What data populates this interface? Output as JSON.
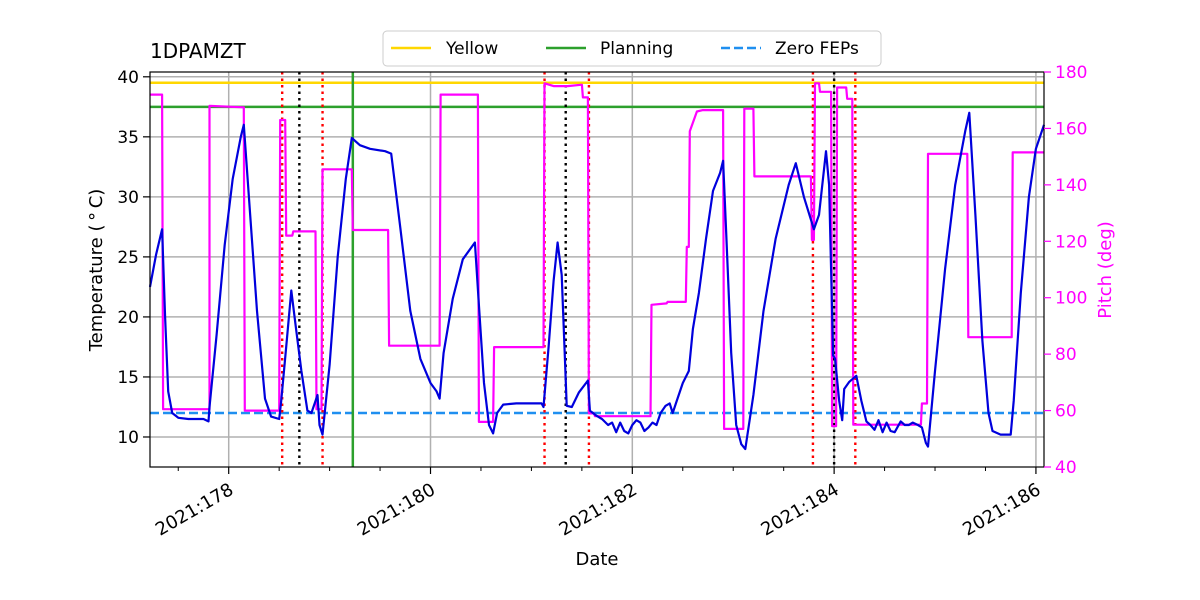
{
  "chart_data": {
    "type": "line",
    "title": "1DPAMZT",
    "xlabel": "Date",
    "ylabel_left": "Temperature ($^\\circ$C)",
    "ylabel_left_display": "Temperature ( ° C)",
    "ylabel_right": "Pitch (deg)",
    "xlim": [
      177.22,
      186.08
    ],
    "ylim_left": [
      7.5,
      40.4
    ],
    "ylim_right": [
      40,
      180
    ],
    "x_ticks": [
      178,
      180,
      182,
      184,
      186
    ],
    "x_tick_labels": [
      "2021:178",
      "2021:180",
      "2021:182",
      "2021:184",
      "2021:186"
    ],
    "x_minor_ticks": [
      177.5,
      178.5,
      179.0,
      179.5,
      180.5,
      181.0,
      181.5,
      182.5,
      183.0,
      183.5,
      184.5,
      185.0,
      185.5
    ],
    "y_left_ticks": [
      10,
      15,
      20,
      25,
      30,
      35,
      40
    ],
    "y_right_ticks": [
      40,
      60,
      80,
      100,
      120,
      140,
      160,
      180
    ],
    "grid": true,
    "legend": {
      "position": "top-center",
      "entries": [
        {
          "label": "Yellow",
          "color": "#ffd700",
          "style": "solid"
        },
        {
          "label": "Planning",
          "color": "#2ca02c",
          "style": "solid"
        },
        {
          "label": "Zero FEPs",
          "color": "#1f8ff0",
          "style": "dashed"
        }
      ]
    },
    "limits": {
      "yellow": 39.5,
      "planning": 37.5,
      "zero_feps": 12.0
    },
    "vertical_markers": {
      "planning_line": 179.23,
      "black_dotted": [
        178.7,
        181.34,
        184.0
      ],
      "red_dotted": [
        178.53,
        178.93,
        181.13,
        181.57,
        183.79,
        184.21
      ]
    },
    "colors": {
      "temperature": "#0000dd",
      "pitch": "#ff00ff",
      "yellow": "#ffd700",
      "planning": "#2ca02c",
      "zero_feps": "#1f8ff0",
      "red_marker": "#ff0000",
      "black_marker": "#000000",
      "right_axis": "#ff00ff",
      "grid": "#b0b0b0"
    },
    "series": [
      {
        "name": "1DPAMZT temperature",
        "axis": "left",
        "points": [
          [
            177.22,
            22.5
          ],
          [
            177.28,
            25.2
          ],
          [
            177.34,
            27.3
          ],
          [
            177.37,
            20.0
          ],
          [
            177.4,
            13.8
          ],
          [
            177.44,
            12.0
          ],
          [
            177.5,
            11.6
          ],
          [
            177.6,
            11.5
          ],
          [
            177.75,
            11.5
          ],
          [
            177.8,
            11.3
          ],
          [
            177.81,
            12.5
          ],
          [
            177.88,
            18.5
          ],
          [
            177.96,
            26.0
          ],
          [
            178.04,
            31.5
          ],
          [
            178.12,
            35.0
          ],
          [
            178.15,
            36.0
          ],
          [
            178.2,
            30.0
          ],
          [
            178.28,
            20.5
          ],
          [
            178.36,
            13.2
          ],
          [
            178.42,
            11.7
          ],
          [
            178.5,
            11.5
          ],
          [
            178.52,
            13.0
          ],
          [
            178.57,
            17.5
          ],
          [
            178.62,
            22.2
          ],
          [
            178.66,
            19.5
          ],
          [
            178.72,
            15.5
          ],
          [
            178.78,
            12.2
          ],
          [
            178.82,
            12.0
          ],
          [
            178.86,
            13.0
          ],
          [
            178.88,
            13.5
          ],
          [
            178.9,
            11.0
          ],
          [
            178.93,
            10.2
          ],
          [
            179.0,
            16.0
          ],
          [
            179.08,
            25.0
          ],
          [
            179.16,
            31.5
          ],
          [
            179.22,
            34.9
          ],
          [
            179.3,
            34.3
          ],
          [
            179.4,
            34.0
          ],
          [
            179.55,
            33.8
          ],
          [
            179.61,
            33.6
          ],
          [
            179.7,
            27.5
          ],
          [
            179.8,
            20.5
          ],
          [
            179.9,
            16.5
          ],
          [
            180.0,
            14.5
          ],
          [
            180.06,
            13.8
          ],
          [
            180.09,
            13.2
          ],
          [
            180.13,
            17.0
          ],
          [
            180.22,
            21.5
          ],
          [
            180.32,
            24.8
          ],
          [
            180.44,
            26.2
          ],
          [
            180.48,
            21.0
          ],
          [
            180.53,
            14.5
          ],
          [
            180.58,
            11.0
          ],
          [
            180.62,
            10.3
          ],
          [
            180.66,
            12.0
          ],
          [
            180.72,
            12.7
          ],
          [
            180.85,
            12.8
          ],
          [
            181.0,
            12.8
          ],
          [
            181.1,
            12.8
          ],
          [
            181.12,
            12.5
          ],
          [
            181.17,
            17.5
          ],
          [
            181.22,
            23.0
          ],
          [
            181.26,
            26.2
          ],
          [
            181.3,
            23.5
          ],
          [
            181.33,
            17.0
          ],
          [
            181.35,
            12.6
          ],
          [
            181.4,
            12.5
          ],
          [
            181.47,
            13.7
          ],
          [
            181.56,
            14.7
          ],
          [
            181.58,
            12.2
          ],
          [
            181.64,
            11.8
          ],
          [
            181.7,
            11.5
          ],
          [
            181.76,
            11.0
          ],
          [
            181.8,
            11.2
          ],
          [
            181.84,
            10.4
          ],
          [
            181.88,
            11.2
          ],
          [
            181.92,
            10.5
          ],
          [
            181.96,
            10.3
          ],
          [
            182.0,
            11.0
          ],
          [
            182.04,
            11.4
          ],
          [
            182.08,
            11.2
          ],
          [
            182.12,
            10.5
          ],
          [
            182.16,
            10.8
          ],
          [
            182.2,
            11.2
          ],
          [
            182.24,
            11.0
          ],
          [
            182.28,
            12.0
          ],
          [
            182.33,
            12.6
          ],
          [
            182.37,
            12.8
          ],
          [
            182.4,
            12.0
          ],
          [
            182.44,
            13.0
          ],
          [
            182.5,
            14.5
          ],
          [
            182.56,
            15.5
          ],
          [
            182.6,
            19.0
          ],
          [
            182.66,
            22.0
          ],
          [
            182.73,
            26.5
          ],
          [
            182.8,
            30.5
          ],
          [
            182.87,
            32.0
          ],
          [
            182.9,
            33.0
          ],
          [
            182.93,
            27.0
          ],
          [
            182.98,
            17.0
          ],
          [
            183.03,
            11.0
          ],
          [
            183.08,
            9.4
          ],
          [
            183.12,
            9.0
          ],
          [
            183.2,
            13.5
          ],
          [
            183.3,
            20.5
          ],
          [
            183.42,
            26.5
          ],
          [
            183.55,
            31.0
          ],
          [
            183.62,
            32.8
          ],
          [
            183.7,
            30.0
          ],
          [
            183.8,
            27.3
          ],
          [
            183.85,
            28.5
          ],
          [
            183.92,
            33.8
          ],
          [
            183.95,
            31.0
          ],
          [
            183.99,
            16.8
          ],
          [
            184.01,
            16.5
          ],
          [
            184.05,
            13.0
          ],
          [
            184.08,
            11.4
          ],
          [
            184.1,
            14.0
          ],
          [
            184.15,
            14.6
          ],
          [
            184.22,
            15.1
          ],
          [
            184.27,
            13.0
          ],
          [
            184.32,
            11.3
          ],
          [
            184.36,
            11.0
          ],
          [
            184.4,
            10.6
          ],
          [
            184.44,
            11.4
          ],
          [
            184.48,
            10.4
          ],
          [
            184.52,
            11.2
          ],
          [
            184.56,
            10.5
          ],
          [
            184.6,
            10.4
          ],
          [
            184.66,
            11.3
          ],
          [
            184.7,
            11.0
          ],
          [
            184.74,
            11.0
          ],
          [
            184.78,
            11.2
          ],
          [
            184.83,
            11.0
          ],
          [
            184.87,
            10.8
          ],
          [
            184.91,
            9.5
          ],
          [
            184.93,
            9.2
          ],
          [
            185.0,
            15.5
          ],
          [
            185.1,
            24.0
          ],
          [
            185.2,
            31.0
          ],
          [
            185.3,
            35.5
          ],
          [
            185.34,
            37.0
          ],
          [
            185.4,
            28.5
          ],
          [
            185.47,
            18.0
          ],
          [
            185.53,
            12.0
          ],
          [
            185.57,
            10.5
          ],
          [
            185.65,
            10.2
          ],
          [
            185.75,
            10.2
          ],
          [
            185.78,
            13.0
          ],
          [
            185.85,
            22.0
          ],
          [
            185.93,
            30.0
          ],
          [
            186.0,
            34.0
          ],
          [
            186.08,
            36.0
          ]
        ]
      },
      {
        "name": "Pitch",
        "axis": "right",
        "points": [
          [
            177.22,
            172
          ],
          [
            177.34,
            172
          ],
          [
            177.34,
            172
          ],
          [
            177.35,
            60.5
          ],
          [
            177.36,
            60.5
          ],
          [
            177.8,
            60.5
          ],
          [
            177.81,
            60.5
          ],
          [
            177.81,
            168
          ],
          [
            178.15,
            167.5
          ],
          [
            178.16,
            60
          ],
          [
            178.5,
            60
          ],
          [
            178.51,
            163
          ],
          [
            178.56,
            163
          ],
          [
            178.57,
            122
          ],
          [
            178.63,
            122
          ],
          [
            178.64,
            123.5
          ],
          [
            178.86,
            123.5
          ],
          [
            178.87,
            60.5
          ],
          [
            178.92,
            60.5
          ],
          [
            178.93,
            145.5
          ],
          [
            179.22,
            145.5
          ],
          [
            179.23,
            124
          ],
          [
            179.58,
            124
          ],
          [
            179.59,
            83
          ],
          [
            180.09,
            83
          ],
          [
            180.1,
            172
          ],
          [
            180.47,
            172
          ],
          [
            180.48,
            56
          ],
          [
            180.62,
            56
          ],
          [
            180.63,
            82.5
          ],
          [
            181.12,
            82.5
          ],
          [
            181.13,
            176
          ],
          [
            181.22,
            175
          ],
          [
            181.23,
            175
          ],
          [
            181.35,
            175
          ],
          [
            181.36,
            175
          ],
          [
            181.5,
            175.5
          ],
          [
            181.51,
            171
          ],
          [
            181.56,
            171
          ],
          [
            181.57,
            59
          ],
          [
            181.62,
            59
          ],
          [
            181.63,
            58
          ],
          [
            182.18,
            58
          ],
          [
            182.19,
            97.5
          ],
          [
            182.34,
            98
          ],
          [
            182.35,
            98.5
          ],
          [
            182.53,
            98.5
          ],
          [
            182.54,
            118
          ],
          [
            182.56,
            118
          ],
          [
            182.57,
            159
          ],
          [
            182.64,
            166
          ],
          [
            182.7,
            166.5
          ],
          [
            182.9,
            166.5
          ],
          [
            182.91,
            53.5
          ],
          [
            183.1,
            53.5
          ],
          [
            183.11,
            167
          ],
          [
            183.2,
            167
          ],
          [
            183.21,
            143
          ],
          [
            183.49,
            143
          ],
          [
            183.5,
            143
          ],
          [
            183.77,
            143
          ],
          [
            183.78,
            120.5
          ],
          [
            183.8,
            120.5
          ],
          [
            183.81,
            176
          ],
          [
            183.85,
            176
          ],
          [
            183.86,
            173
          ],
          [
            183.97,
            173
          ],
          [
            183.98,
            54.5
          ],
          [
            184.02,
            54.5
          ],
          [
            184.03,
            174.5
          ],
          [
            184.12,
            174.5
          ],
          [
            184.13,
            170.5
          ],
          [
            184.18,
            170.5
          ],
          [
            184.19,
            55
          ],
          [
            184.86,
            55
          ],
          [
            184.87,
            62.5
          ],
          [
            184.92,
            62.5
          ],
          [
            184.93,
            151
          ],
          [
            185.32,
            151
          ],
          [
            185.33,
            86
          ],
          [
            185.76,
            86
          ],
          [
            185.77,
            151.5
          ],
          [
            186.08,
            151.5
          ]
        ]
      }
    ]
  }
}
